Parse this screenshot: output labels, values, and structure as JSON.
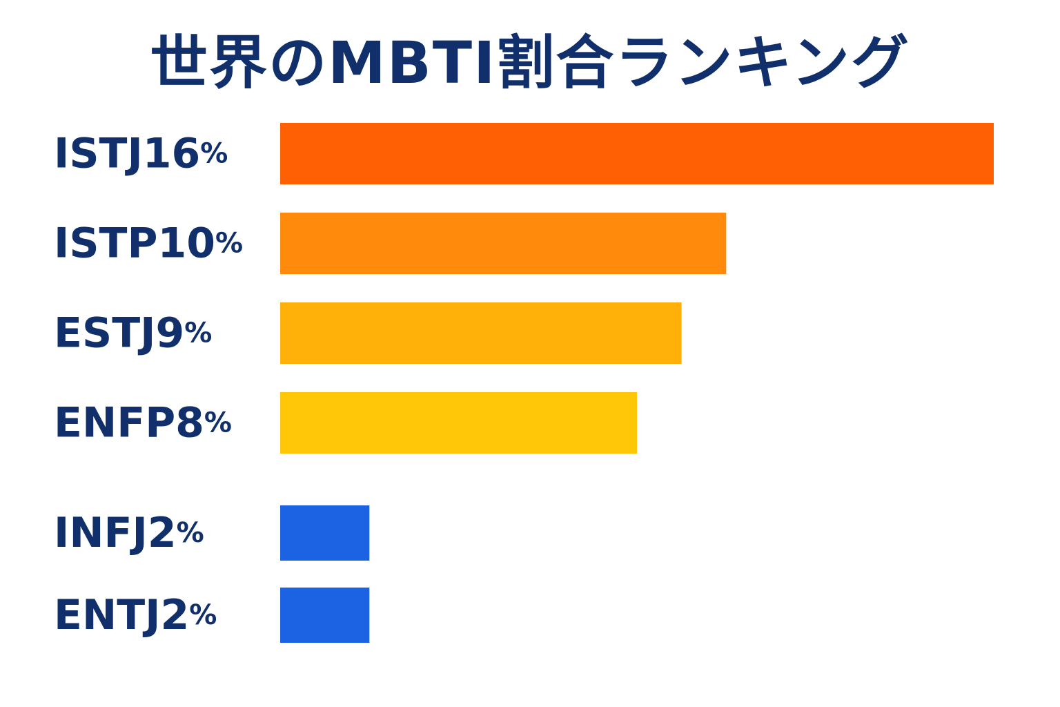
{
  "chart_data": {
    "type": "bar",
    "orientation": "horizontal",
    "title": "世界のMBTI割合ランキング",
    "categories": [
      "ISTJ",
      "ISTP",
      "ESTJ",
      "ENFP",
      "INFJ",
      "ENTJ"
    ],
    "values": [
      16,
      10,
      9,
      8,
      2,
      2
    ],
    "value_suffix": "%",
    "colors": [
      "#ff6004",
      "#ff8a0c",
      "#ffb10a",
      "#ffc708",
      "#1c63e3",
      "#1c63e3"
    ],
    "xlim": [
      0,
      16
    ],
    "grid": false,
    "legend": "none"
  }
}
